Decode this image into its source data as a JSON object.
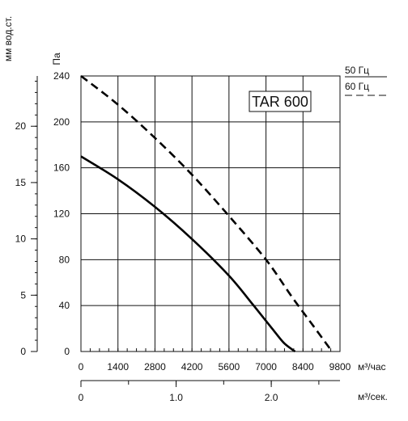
{
  "chart_data": {
    "type": "line",
    "model_label": "TAR 600",
    "y_left_label": "мм вод.ст.",
    "y_left_ticks": [
      "0",
      "5",
      "10",
      "15",
      "20"
    ],
    "y_pa_label": "Па",
    "y_pa_ticks": [
      "0",
      "40",
      "80",
      "120",
      "160",
      "200",
      "240"
    ],
    "x_label": "м³/час",
    "x_ticks": [
      "0",
      "1400",
      "2800",
      "4200",
      "5600",
      "7000",
      "8400",
      "9800"
    ],
    "x2_label": "м³/сек.",
    "x2_ticks": [
      "0",
      "1.0",
      "2.0"
    ],
    "xlim": [
      0,
      9800
    ],
    "ylim": [
      0,
      240
    ],
    "legend": [
      {
        "label": "50 Гц",
        "style": "solid"
      },
      {
        "label": "60 Гц",
        "style": "dashed"
      }
    ],
    "series": [
      {
        "name": "50 Гц",
        "style": "solid",
        "color": "#000000",
        "x": [
          0,
          1400,
          2800,
          4200,
          5600,
          6500,
          7300,
          7700,
          8100
        ],
        "y": [
          170,
          150,
          126,
          98,
          66,
          41,
          18,
          7,
          0
        ]
      },
      {
        "name": "60 Гц",
        "style": "dashed",
        "color": "#000000",
        "x": [
          0,
          1400,
          2800,
          4200,
          5600,
          7000,
          8000,
          8800,
          9500
        ],
        "y": [
          240,
          215,
          186,
          154,
          118,
          80,
          47,
          22,
          0
        ]
      }
    ]
  }
}
